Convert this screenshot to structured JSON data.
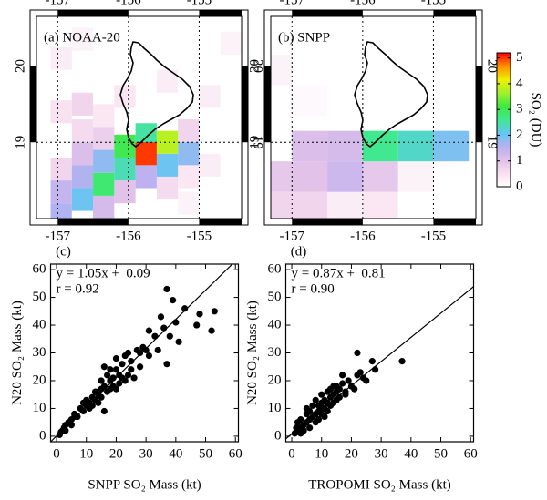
{
  "chart_data": [
    {
      "type": "map",
      "title": "(a) NOAA-20",
      "xlim": [
        -157.3,
        -154.4
      ],
      "ylim": [
        18.0,
        20.65
      ],
      "xticks": [
        -157,
        -156,
        -155
      ],
      "yticks": [
        19,
        20
      ],
      "grid": true,
      "x": [
        -155.75,
        -155.45,
        -155.75,
        -156.05,
        -155.45,
        -155.15,
        -156.05,
        -156.35,
        -156.35,
        -156.65,
        -156.65,
        -156.95,
        -156.95,
        -156.35,
        -156.05,
        -155.75,
        -155.45,
        -156.65,
        -156.95,
        -156.35,
        -156.65,
        -156.95,
        -156.35,
        -155.15,
        -155.15,
        -156.65,
        -156.05,
        -156.95,
        -156.65,
        -154.85,
        -154.85,
        -155.45,
        -154.55,
        -155.15
      ],
      "y": [
        18.85,
        19.0,
        19.1,
        18.95,
        18.7,
        18.85,
        18.65,
        18.75,
        18.45,
        18.55,
        18.25,
        18.35,
        18.05,
        18.15,
        18.35,
        18.55,
        18.4,
        18.85,
        18.65,
        19.05,
        19.15,
        19.4,
        19.35,
        19.15,
        18.55,
        19.5,
        19.6,
        20.1,
        20.35,
        18.7,
        19.6,
        19.8,
        20.3,
        18.2
      ],
      "values": [
        5.0,
        3.8,
        2.5,
        3.0,
        2.0,
        1.8,
        2.4,
        1.8,
        2.8,
        1.6,
        2.0,
        1.4,
        1.6,
        1.2,
        1.0,
        1.5,
        0.6,
        1.1,
        0.7,
        0.8,
        0.6,
        0.5,
        0.4,
        0.7,
        0.4,
        0.7,
        0.4,
        0.3,
        0.2,
        0.3,
        0.3,
        0.3,
        0.2,
        0.2
      ]
    },
    {
      "type": "map",
      "title": "(b) SNPP",
      "xlim": [
        -157.3,
        -154.4
      ],
      "ylim": [
        18.0,
        20.65
      ],
      "xticks": [
        -157,
        -156,
        -155
      ],
      "yticks": [
        19,
        20
      ],
      "grid": true,
      "x": [
        -156.75,
        -156.25,
        -155.75,
        -155.25,
        -154.75,
        -157.25,
        -156.75,
        -156.25,
        -155.75,
        -155.25,
        -157.25,
        -156.75,
        -156.25,
        -155.75,
        -157.25,
        -156.75
      ],
      "y": [
        18.95,
        18.95,
        18.95,
        18.95,
        18.95,
        18.55,
        18.55,
        18.55,
        18.55,
        18.55,
        18.15,
        18.15,
        18.15,
        18.15,
        19.95,
        19.55
      ],
      "values": [
        1.1,
        1.2,
        2.6,
        2.3,
        1.9,
        0.9,
        1.0,
        1.3,
        0.9,
        0.2,
        0.7,
        0.7,
        0.3,
        0.4,
        0.2,
        0.1
      ]
    },
    {
      "type": "colorbar",
      "label": "SO₂ (DU)",
      "ylim": [
        0,
        5.2
      ],
      "yticks": [
        0,
        1,
        2,
        3,
        4,
        5
      ],
      "colors": [
        "#ffffff",
        "#f8e0f0",
        "#e0c0e8",
        "#b8b0f0",
        "#60c8f0",
        "#40e890",
        "#40e840",
        "#a0f030",
        "#f0f000",
        "#ff9000",
        "#ff0000"
      ]
    },
    {
      "type": "scatter",
      "title": "(c)",
      "x_label": "SNPP SO₂ Mass (kt)",
      "y_label": "N20 SO₂ Mass (kt)",
      "xlim": [
        -2,
        61
      ],
      "ylim": [
        -2,
        62
      ],
      "xticks": [
        0,
        10,
        20,
        30,
        40,
        50,
        60
      ],
      "yticks": [
        0,
        10,
        20,
        30,
        40,
        50,
        60
      ],
      "color": "#000000",
      "fit": {
        "slope": 1.05,
        "intercept": 0.09
      },
      "annotations": [
        "y = 1.05x +  0.09",
        "r = 0.92"
      ],
      "x": [
        1,
        1.5,
        2,
        2.5,
        3,
        3,
        4,
        5,
        5,
        6,
        7,
        8,
        9,
        10,
        10,
        11,
        11,
        12,
        12,
        13,
        13,
        14,
        14,
        15,
        15,
        15,
        16,
        16,
        16,
        17,
        17,
        18,
        18,
        19,
        19,
        20,
        20,
        21,
        21,
        22,
        22,
        23,
        23,
        24,
        25,
        25,
        26,
        27,
        28,
        28,
        29,
        30,
        31,
        31,
        33,
        34,
        35,
        36,
        37,
        37,
        38,
        39,
        40,
        41,
        43,
        47,
        48,
        52,
        53,
        20,
        24,
        18,
        14,
        9,
        6
      ],
      "values": [
        0.5,
        1.5,
        2,
        3,
        2,
        4,
        5,
        4,
        6,
        7,
        7,
        10,
        9,
        11,
        13,
        10,
        12,
        14,
        11,
        13,
        16,
        15,
        12,
        17,
        14,
        20,
        18,
        9,
        25,
        16,
        22,
        20,
        17,
        21,
        18,
        17,
        24,
        22,
        19,
        21,
        26,
        20,
        29,
        22,
        24,
        27,
        21,
        31,
        30,
        25,
        32,
        31,
        29,
        38,
        36,
        31,
        43,
        39,
        26,
        53,
        36,
        49,
        41,
        34,
        46,
        40,
        44,
        38,
        45,
        28,
        30,
        24,
        16,
        12,
        8
      ]
    },
    {
      "type": "scatter",
      "title": "(d)",
      "x_label": "TROPOMI SO₂ Mass (kt)",
      "y_label": "N20 SO₂ Mass (kt)",
      "xlim": [
        -2,
        61
      ],
      "ylim": [
        -2,
        62
      ],
      "xticks": [
        0,
        10,
        20,
        30,
        40,
        50,
        60
      ],
      "yticks": [
        0,
        10,
        20,
        30,
        40,
        50,
        60
      ],
      "color": "#000000",
      "fit": {
        "slope": 0.87,
        "intercept": 0.81
      },
      "annotations": [
        "y = 0.87x +  0.81",
        "r = 0.90"
      ],
      "x": [
        1,
        1.5,
        2,
        2,
        3,
        3,
        4,
        4,
        5,
        5,
        6,
        6,
        7,
        7,
        8,
        8,
        8,
        9,
        9,
        10,
        10,
        10,
        11,
        11,
        12,
        12,
        12,
        13,
        13,
        14,
        14,
        15,
        15,
        16,
        16,
        17,
        17,
        18,
        18,
        19,
        20,
        21,
        22,
        22,
        23,
        24,
        25,
        27,
        28,
        37,
        3,
        5,
        9,
        11,
        13,
        15,
        6,
        10,
        14
      ],
      "values": [
        1,
        3,
        2,
        5,
        3,
        6,
        4,
        2,
        5,
        8,
        6,
        3,
        7,
        11,
        8,
        5,
        13,
        9,
        11,
        8,
        12,
        15,
        10,
        13,
        12,
        9,
        16,
        14,
        11,
        15,
        18,
        13,
        16,
        17,
        14,
        19,
        22,
        16,
        15,
        20,
        18,
        17,
        30,
        22,
        23,
        21,
        20,
        27,
        24,
        27,
        1,
        10,
        6,
        7,
        17,
        18,
        9,
        10,
        12
      ]
    }
  ]
}
